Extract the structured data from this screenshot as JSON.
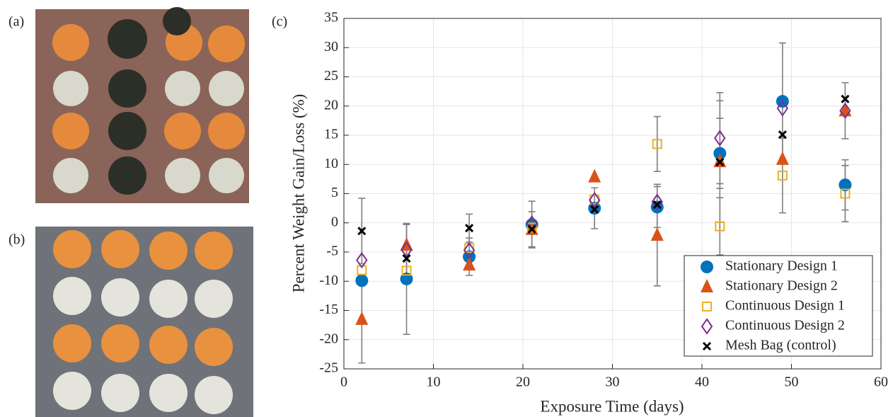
{
  "panel_labels": [
    "(a)",
    "(b)",
    "(c)"
  ],
  "chart_data": {
    "type": "scatter",
    "x_label": "Exposure Time (days)",
    "y_label": "Percent Weight Gain/Loss (%)",
    "xlim": [
      0,
      60
    ],
    "xticks": [
      0,
      10,
      20,
      30,
      40,
      50,
      60
    ],
    "ylim": [
      -25,
      35
    ],
    "yticks": [
      -25,
      -20,
      -15,
      -10,
      -5,
      0,
      5,
      10,
      15,
      20,
      25,
      30,
      35
    ],
    "grid": true,
    "legend": "lower right",
    "x": [
      2,
      7,
      14,
      21,
      28,
      35,
      42,
      49,
      56
    ],
    "series": [
      {
        "name": "Stationary Design 1",
        "color": "#0072bd",
        "marker": "circle",
        "values": [
          -9.9,
          -9.6,
          -5.8,
          -0.3,
          2.5,
          2.7,
          11.9,
          20.8,
          6.5
        ],
        "errors": [
          null,
          9.5,
          3.2,
          4,
          3.5,
          3.5,
          6,
          10,
          4.3
        ]
      },
      {
        "name": "Stationary Design 2",
        "color": "#d95319",
        "marker": "triangle",
        "values": [
          -16.5,
          -3.8,
          -7.2,
          -1.1,
          7.9,
          -2.1,
          10.5,
          10.9,
          19.2
        ],
        "errors": [
          7.5,
          null,
          null,
          3,
          null,
          8.7,
          10.4,
          null,
          4.8
        ]
      },
      {
        "name": "Continuous Design 1",
        "color": "#edb120",
        "marker": "square",
        "values": [
          -8.1,
          -8.2,
          -4.3,
          -0.8,
          4.0,
          13.5,
          -0.6,
          8.1,
          5.0
        ],
        "errors": [
          null,
          null,
          null,
          null,
          null,
          4.7,
          4.9,
          6.4,
          4.8
        ]
      },
      {
        "name": "Continuous Design 2",
        "color": "#7e2f8e",
        "marker": "diamond",
        "values": [
          -6.4,
          -4.6,
          -4.7,
          -0.1,
          3.9,
          3.6,
          14.5,
          19.6,
          19.2
        ],
        "errors": [
          null,
          4.3,
          null,
          null,
          null,
          null,
          7.8,
          null,
          null
        ]
      },
      {
        "name": "Mesh Bag (control)",
        "color": "#000000",
        "marker": "x",
        "values": [
          -1.4,
          -6.1,
          -0.9,
          -1.1,
          2.3,
          3.1,
          10.4,
          15.1,
          21.2
        ],
        "errors": [
          5.6,
          null,
          2.4,
          null,
          null,
          null,
          null,
          null,
          null
        ]
      }
    ]
  }
}
